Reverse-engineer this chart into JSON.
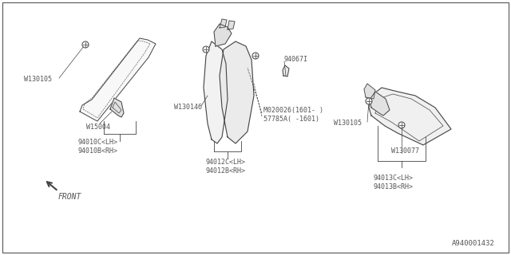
{
  "bg_color": "#ffffff",
  "border_color": "#555555",
  "part_number": "A940001432",
  "labels": {
    "front": "FRONT",
    "part1a": "94010B<RH>",
    "part1b": "94010C<LH>",
    "part2a": "94012B<RH>",
    "part2b": "94012C<LH>",
    "part3a": "94013B<RH>",
    "part3b": "94013C<LH>",
    "w15004": "W15004",
    "w130105_1": "W130105",
    "w130105_2": "W130105",
    "w130146": "W130146",
    "w130077": "W130077",
    "part4a": "57785A( -1601)",
    "part4b": "M020026(1601- )",
    "part5": "94067I"
  },
  "line_color": "#444444",
  "text_color": "#555555",
  "font_size": 6.5,
  "small_font_size": 6
}
